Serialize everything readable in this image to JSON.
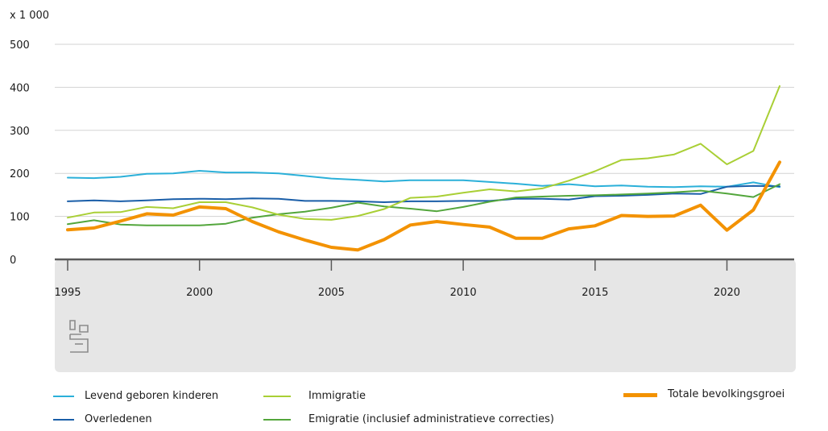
{
  "chart_data": {
    "type": "line",
    "unit_label": "x 1 000",
    "x": [
      1995,
      1996,
      1997,
      1998,
      1999,
      2000,
      2001,
      2002,
      2003,
      2004,
      2005,
      2006,
      2007,
      2008,
      2009,
      2010,
      2011,
      2012,
      2013,
      2014,
      2015,
      2016,
      2017,
      2018,
      2019,
      2020,
      2021,
      2022
    ],
    "x_ticks": [
      "1995",
      "2000",
      "2005",
      "2010",
      "2015",
      "2020"
    ],
    "y_ticks": [
      "0",
      "100",
      "200",
      "300",
      "400",
      "500"
    ],
    "ylim": [
      0,
      500
    ],
    "xlim": [
      1995,
      2022
    ],
    "grid": true,
    "series": [
      {
        "name": "Levend geboren kinderen",
        "color": "#2bb0d9",
        "values": [
          190,
          189,
          192,
          199,
          200,
          206,
          202,
          202,
          200,
          194,
          188,
          185,
          181,
          184,
          184,
          184,
          180,
          176,
          171,
          175,
          170,
          172,
          169,
          168,
          170,
          169,
          179,
          168
        ]
      },
      {
        "name": "Overledenen",
        "color": "#1a5ea8",
        "values": [
          135,
          137,
          135,
          137,
          140,
          141,
          140,
          142,
          141,
          136,
          136,
          135,
          133,
          135,
          135,
          136,
          136,
          141,
          141,
          139,
          147,
          148,
          150,
          153,
          152,
          169,
          171,
          170
        ]
      },
      {
        "name": "Immigratie",
        "color": "#a9cf35",
        "values": [
          97,
          109,
          110,
          122,
          119,
          133,
          133,
          121,
          104,
          94,
          92,
          101,
          117,
          143,
          146,
          155,
          163,
          158,
          165,
          183,
          205,
          231,
          235,
          244,
          269,
          221,
          252,
          403
        ]
      },
      {
        "name": "Emigratie (inclusief administratieve correcties)",
        "color": "#53a63c",
        "values": [
          82,
          91,
          81,
          79,
          79,
          79,
          83,
          97,
          105,
          111,
          120,
          132,
          123,
          118,
          112,
          122,
          134,
          144,
          146,
          148,
          149,
          151,
          153,
          156,
          160,
          153,
          145,
          175
        ]
      },
      {
        "name": "Totale bevolkingsgroei",
        "color": "#f39200",
        "values": [
          69,
          73,
          89,
          106,
          103,
          122,
          118,
          88,
          64,
          45,
          28,
          22,
          46,
          80,
          88,
          81,
          75,
          49,
          49,
          71,
          78,
          102,
          100,
          101,
          126,
          68,
          115,
          226
        ]
      }
    ]
  }
}
